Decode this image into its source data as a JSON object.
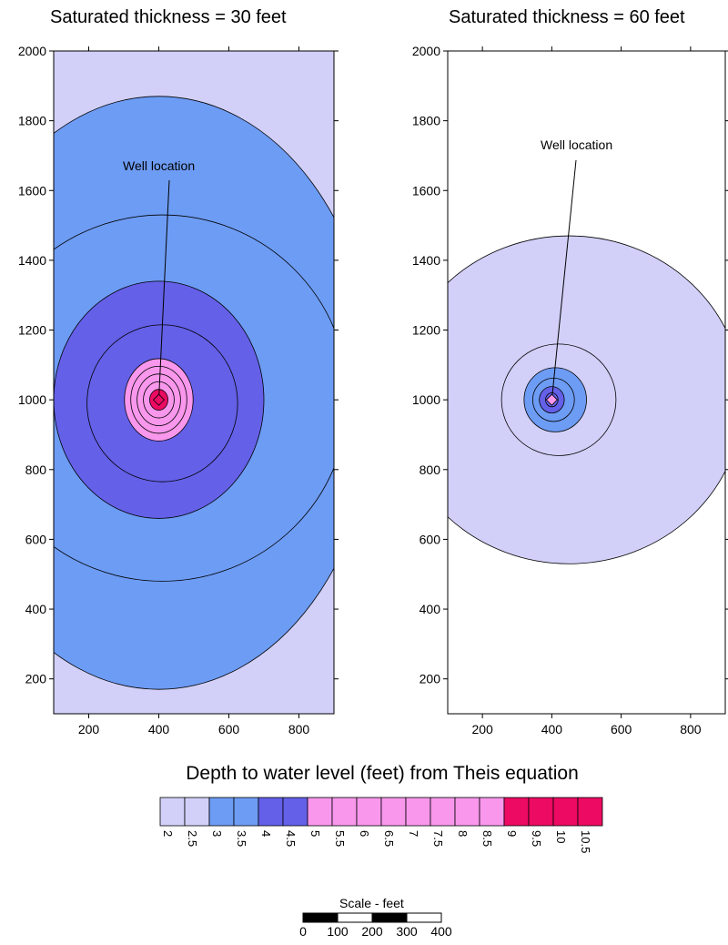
{
  "chart_data": [
    {
      "type": "contour",
      "title": "Saturated thickness = 30 feet",
      "xlim": [
        100,
        900
      ],
      "ylim": [
        100,
        2000
      ],
      "xticks": [
        "200",
        "400",
        "600",
        "800"
      ],
      "yticks": [
        "200",
        "400",
        "600",
        "800",
        "1000",
        "1200",
        "1400",
        "1600",
        "1800",
        "2000"
      ],
      "annotation": "Well location",
      "well": [
        400,
        1000
      ],
      "contours": [
        {
          "level": 3,
          "cx": 400,
          "cy": 1020,
          "rx": 620,
          "ry": 850
        },
        {
          "level": 3.5,
          "cx": 410,
          "cy": 1005,
          "rx": 530,
          "ry": 525
        },
        {
          "level": 4,
          "cx": 400,
          "cy": 1000,
          "rx": 300,
          "ry": 340
        },
        {
          "level": 4.5,
          "cx": 410,
          "cy": 990,
          "rx": 215,
          "ry": 225
        },
        {
          "level": 5,
          "cx": 400,
          "cy": 1000,
          "rx": 98,
          "ry": 118
        },
        {
          "level": 6,
          "cx": 400,
          "cy": 1000,
          "rx": 80,
          "ry": 96
        },
        {
          "level": 7,
          "cx": 400,
          "cy": 1000,
          "rx": 62,
          "ry": 74
        },
        {
          "level": 8,
          "cx": 400,
          "cy": 1000,
          "rx": 44,
          "ry": 52
        },
        {
          "level": 9,
          "cx": 400,
          "cy": 1000,
          "rx": 26,
          "ry": 30
        }
      ]
    },
    {
      "type": "contour",
      "title": "Saturated thickness = 60 feet",
      "xlim": [
        100,
        900
      ],
      "ylim": [
        100,
        2000
      ],
      "xticks": [
        "200",
        "400",
        "600",
        "800"
      ],
      "yticks": [
        "200",
        "400",
        "600",
        "800",
        "1000",
        "1200",
        "1400",
        "1600",
        "1800",
        "2000"
      ],
      "annotation": "Well location",
      "well": [
        400,
        1000
      ],
      "contours": [
        {
          "level": 2,
          "cx": 450,
          "cy": 1000,
          "rx": 500,
          "ry": 470
        },
        {
          "level": 2.5,
          "cx": 420,
          "cy": 1000,
          "rx": 165,
          "ry": 160
        },
        {
          "level": 3,
          "cx": 410,
          "cy": 1000,
          "rx": 90,
          "ry": 92
        },
        {
          "level": 3.5,
          "cx": 405,
          "cy": 1000,
          "rx": 60,
          "ry": 62
        },
        {
          "level": 4,
          "cx": 400,
          "cy": 1000,
          "rx": 36,
          "ry": 38
        },
        {
          "level": 4.5,
          "cx": 400,
          "cy": 1000,
          "rx": 18,
          "ry": 20
        }
      ]
    }
  ],
  "legend": {
    "title": "Depth to water level (feet) from Theis equation",
    "labels": [
      "2",
      "2.5",
      "3",
      "3.5",
      "4",
      "4.5",
      "5",
      "5.5",
      "6",
      "6.5",
      "7",
      "7.5",
      "8",
      "8.5",
      "9",
      "9.5",
      "10",
      "10.5"
    ],
    "colors": [
      "#d2d0f8",
      "#d2d0f8",
      "#6d9cf4",
      "#6d9cf4",
      "#6460e8",
      "#6460e8",
      "#f897ec",
      "#f897ec",
      "#f897ec",
      "#f897ec",
      "#f897ec",
      "#f897ec",
      "#f897ec",
      "#f897ec",
      "#ec0a62",
      "#ec0a62",
      "#ec0a62",
      "#ec0a62"
    ]
  },
  "scale": {
    "title": "Scale - feet",
    "labels": [
      "0",
      "100",
      "200",
      "300",
      "400"
    ]
  },
  "colors": {
    "band_2": "#d2d0f8",
    "band_3": "#6d9cf4",
    "band_4": "#6460e8",
    "band_5": "#f897ec",
    "band_9": "#ec0a62"
  }
}
